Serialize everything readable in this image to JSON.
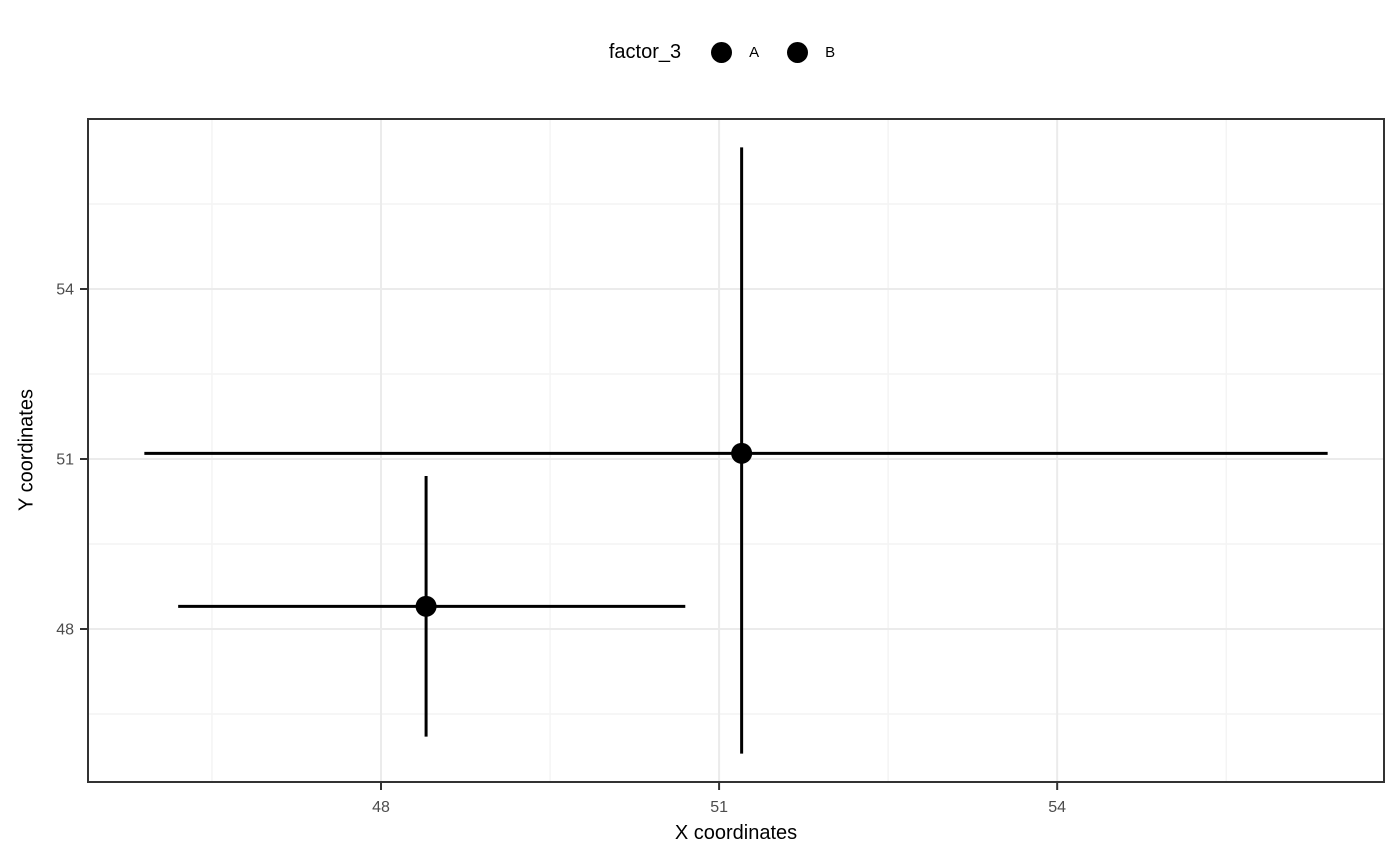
{
  "chart_data": {
    "type": "scatter",
    "title": "",
    "xlabel": "X coordinates",
    "ylabel": "Y coordinates",
    "legend": {
      "title": "factor_3",
      "entries": [
        "A",
        "B"
      ],
      "position": "top"
    },
    "xlim": [
      45.4,
      56.9
    ],
    "ylim": [
      45.3,
      57.0
    ],
    "x_ticks": [
      48,
      51,
      54
    ],
    "y_ticks": [
      48,
      51,
      54
    ],
    "x_minor_ticks": [
      46.5,
      49.5,
      52.5,
      55.5
    ],
    "y_minor_ticks": [
      46.5,
      49.5,
      52.5,
      55.5
    ],
    "grid": true,
    "points": [
      {
        "group": "A",
        "x": 48.4,
        "y": 48.4,
        "xmin": 46.2,
        "xmax": 50.7,
        "ymin": 46.1,
        "ymax": 50.7
      },
      {
        "group": "B",
        "x": 51.2,
        "y": 51.1,
        "xmin": 45.9,
        "xmax": 56.4,
        "ymin": 45.8,
        "ymax": 56.5
      }
    ],
    "colors": {
      "point": "#000000",
      "error_bar": "#000000",
      "panel_border": "#333333",
      "tick_mark": "#333333",
      "grid_major": "#EBEBEB",
      "grid_minor": "#F4F4F4",
      "tick_label": "#4D4D4D",
      "axis_title": "#000000",
      "background": "#FFFFFF"
    }
  }
}
